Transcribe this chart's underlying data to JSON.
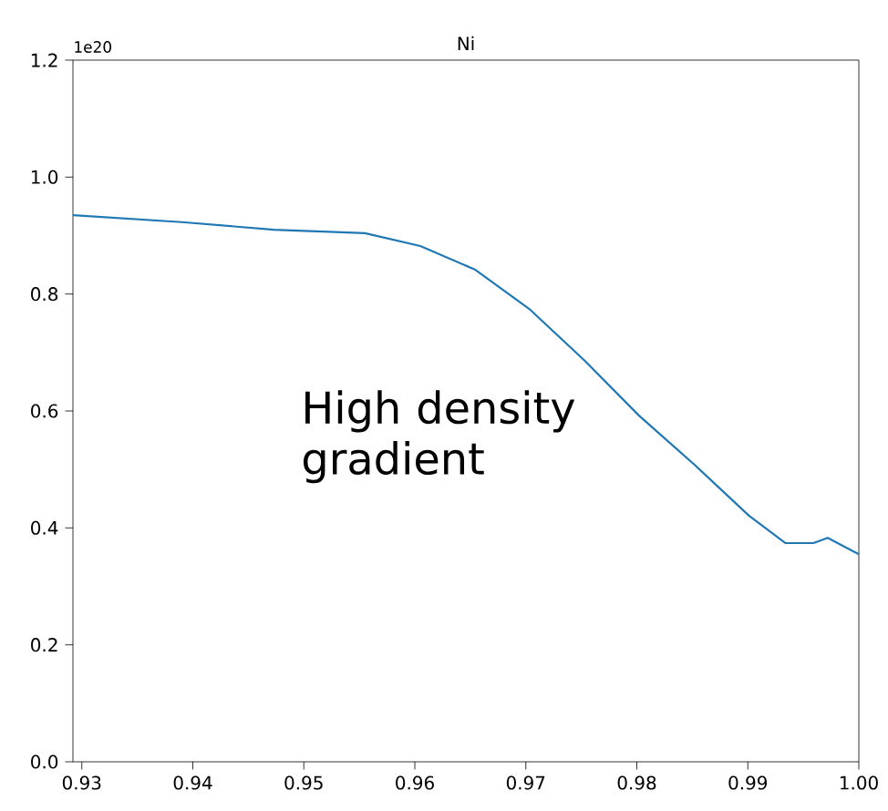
{
  "chart_data": {
    "type": "line",
    "title": "Ni",
    "annotations": [
      "1e20",
      "High density gradient"
    ],
    "x": [
      0.9292,
      0.939,
      0.9473,
      0.9555,
      0.9605,
      0.9654,
      0.9704,
      0.9753,
      0.9802,
      0.9852,
      0.9901,
      0.9934,
      0.9959,
      0.9972,
      0.9984,
      1.0
    ],
    "series": [
      {
        "color": "#1f77b4",
        "values": [
          0.935,
          0.923,
          0.91,
          0.904,
          0.882,
          0.842,
          0.773,
          0.686,
          0.592,
          0.508,
          0.421,
          0.374,
          0.374,
          0.383,
          0.371,
          0.355
        ]
      }
    ],
    "xlim": [
      0.9292,
      1.0
    ],
    "ylim": [
      0,
      1.2
    ],
    "xticks": [
      0.93,
      0.94,
      0.95,
      0.96,
      0.97,
      0.98,
      0.99,
      {
        "value": 1.0,
        "label": "1.00"
      }
    ],
    "yticks": [
      {
        "value": 0,
        "label": "0.0"
      },
      0.2,
      0.4,
      0.6,
      0.8,
      {
        "value": 1.0,
        "label": "1.0"
      },
      1.2
    ],
    "grid": false
  }
}
